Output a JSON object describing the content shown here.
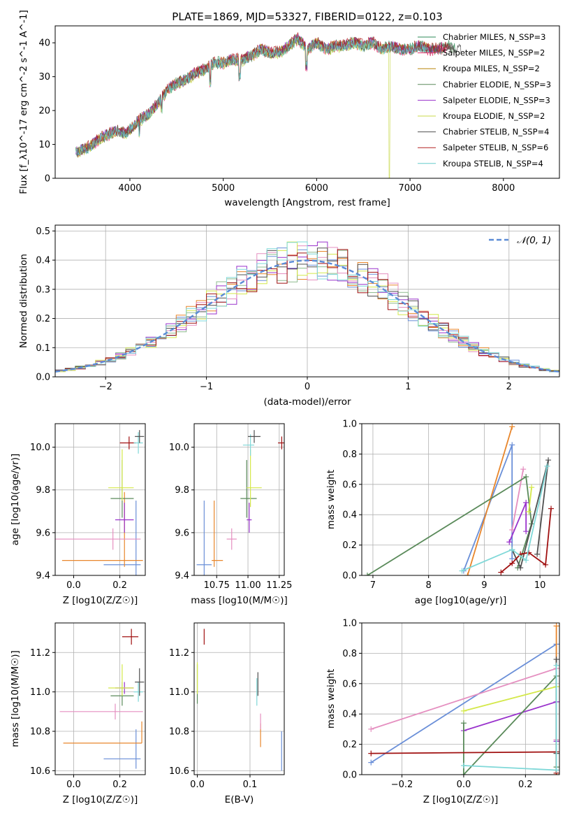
{
  "chart_data": [
    {
      "id": "spectrum",
      "type": "line",
      "title": "PLATE=1869, MJD=53327, FIBERID=0122, z=0.103",
      "xlabel": "wavelength [Angstrom, rest frame]",
      "ylabel": "Flux [f_λ10^-17 erg cm^-2 s^-1 A^-1]",
      "xlim": [
        3200,
        8600
      ],
      "ylim": [
        0,
        45
      ],
      "xticks": [
        4000,
        5000,
        6000,
        7000,
        8000
      ],
      "yticks": [
        0,
        10,
        20,
        30,
        40
      ],
      "grid": false,
      "legend_position": "right",
      "continuum": {
        "x": [
          3420,
          3550,
          3700,
          3850,
          3950,
          4100,
          4200,
          4300,
          4400,
          4500,
          4600,
          4700,
          4800,
          4900,
          5000,
          5100,
          5200,
          5300,
          5400,
          5500,
          5600,
          5700,
          5800,
          5900,
          6000,
          6100,
          6200,
          6300,
          6400,
          6500,
          6600,
          6700,
          6800,
          6900,
          7000,
          7100,
          7200,
          7300,
          7400,
          7500
        ],
        "y": [
          7.5,
          9,
          12,
          14,
          13,
          17,
          19,
          22,
          26,
          28,
          29,
          31,
          32,
          34,
          34,
          35,
          35,
          36,
          38,
          37,
          37,
          39,
          41,
          38,
          40,
          38,
          39,
          39,
          40,
          39,
          40,
          38,
          39,
          38,
          38,
          39,
          38,
          38,
          39,
          38
        ]
      },
      "series": [
        {
          "name": "Chabrier MILES, N_SSP=3",
          "color": "#2e8b57",
          "offset": 0.4
        },
        {
          "name": "Salpeter MILES, N_SSP=2",
          "color": "#e8336e",
          "offset": -0.3
        },
        {
          "name": "Kroupa MILES, N_SSP=2",
          "color": "#b8860b",
          "offset": 0.2
        },
        {
          "name": "Chabrier ELODIE, N_SSP=3",
          "color": "#5a8a5a",
          "offset": -0.2
        },
        {
          "name": "Salpeter ELODIE, N_SSP=3",
          "color": "#9932cc",
          "offset": 0.3
        },
        {
          "name": "Kroupa ELODIE, N_SSP=2",
          "color": "#c8d84a",
          "offset": -0.4
        },
        {
          "name": "Chabrier STELIB, N_SSP=4",
          "color": "#505050",
          "offset": 0.0
        },
        {
          "name": "Salpeter STELIB, N_SSP=6",
          "color": "#b22222",
          "offset": 0.5
        },
        {
          "name": "Kroupa STELIB, N_SSP=4",
          "color": "#66cccc",
          "offset": -0.1
        }
      ]
    },
    {
      "id": "residuals",
      "type": "line",
      "xlabel": "(data-model)/error",
      "ylabel": "Normed distribution",
      "xlim": [
        -2.5,
        2.5
      ],
      "ylim": [
        0,
        0.52
      ],
      "xticks": [
        -2,
        -1,
        0,
        1,
        2
      ],
      "yticks": [
        0.0,
        0.1,
        0.2,
        0.3,
        0.4,
        0.5
      ],
      "grid": true,
      "legend": {
        "label": "𝒩(0, 1)",
        "position": "top-right"
      },
      "gaussian": {
        "mu": 0,
        "sigma": 1,
        "color": "#5b8bd6"
      },
      "hist_bins": {
        "start": -2.5,
        "width": 0.1,
        "count": 50
      },
      "series": [
        {
          "color": "#6a8fd8",
          "seed": 1
        },
        {
          "color": "#e8862b",
          "seed": 2
        },
        {
          "color": "#8fbc8f",
          "seed": 3
        },
        {
          "color": "#9932cc",
          "seed": 4
        },
        {
          "color": "#e58fc0",
          "seed": 5
        },
        {
          "color": "#d4e84a",
          "seed": 6
        },
        {
          "color": "#505050",
          "seed": 7
        },
        {
          "color": "#a01010",
          "seed": 8
        },
        {
          "color": "#7fd8d8",
          "seed": 9
        }
      ]
    },
    {
      "id": "age_vs_Z",
      "type": "scatter",
      "xlabel": "Z [log10(Z/Z☉)]",
      "ylabel": "age  [log10(age/yr)]",
      "xlim": [
        -0.08,
        0.31
      ],
      "ylim": [
        9.4,
        10.11
      ],
      "xticks": [
        0.0,
        0.2
      ],
      "yticks": [
        9.4,
        9.6,
        9.8,
        10.0
      ],
      "grid": true,
      "points": [
        {
          "x": 0.27,
          "y": 9.45,
          "xerr": [
            0.14,
            0.02
          ],
          "yerr": [
            0.05,
            0.3
          ],
          "color": "#6a8fd8"
        },
        {
          "x": 0.22,
          "y": 9.47,
          "xerr": [
            0.27,
            0.08
          ],
          "yerr": [
            0.03,
            0.32
          ],
          "color": "#e8862b"
        },
        {
          "x": 0.17,
          "y": 9.57,
          "xerr": [
            0.25,
            0.12
          ],
          "yerr": [
            0.05,
            0.05
          ],
          "color": "#e58fc0"
        },
        {
          "x": 0.22,
          "y": 9.66,
          "xerr": [
            0.04,
            0.04
          ],
          "yerr": [
            0.06,
            0.08
          ],
          "color": "#9932cc"
        },
        {
          "x": 0.21,
          "y": 9.76,
          "xerr": [
            0.05,
            0.05
          ],
          "yerr": [
            0.09,
            0.18
          ],
          "color": "#5a8a5a"
        },
        {
          "x": 0.21,
          "y": 9.81,
          "xerr": [
            0.06,
            0.05
          ],
          "yerr": [
            0.06,
            0.18
          ],
          "color": "#d4e84a"
        },
        {
          "x": 0.24,
          "y": 10.02,
          "xerr": [
            0.04,
            0.03
          ],
          "yerr": [
            0.03,
            0.03
          ],
          "color": "#a01010"
        },
        {
          "x": 0.28,
          "y": 10.02,
          "xerr": [
            0.02,
            0.02
          ],
          "yerr": [
            0.05,
            0.05
          ],
          "color": "#7fd8d8"
        },
        {
          "x": 0.285,
          "y": 10.05,
          "xerr": [
            0.02,
            0.02
          ],
          "yerr": [
            0.03,
            0.03
          ],
          "color": "#505050"
        }
      ]
    },
    {
      "id": "age_vs_mass",
      "type": "scatter",
      "xlabel": "mass [log10(M/M☉)]",
      "ylabel": "",
      "xlim": [
        10.57,
        11.29
      ],
      "ylim": [
        9.4,
        10.11
      ],
      "xticks": [
        10.75,
        11.0,
        11.25
      ],
      "yticks": [
        9.4,
        9.6,
        9.8,
        10.0
      ],
      "grid": true,
      "points": [
        {
          "x": 10.65,
          "y": 9.45,
          "xerr": [
            0.06,
            0.06
          ],
          "yerr": [
            0.05,
            0.3
          ],
          "color": "#6a8fd8"
        },
        {
          "x": 10.73,
          "y": 9.47,
          "xerr": [
            0.02,
            0.07
          ],
          "yerr": [
            0.03,
            0.28
          ],
          "color": "#e8862b"
        },
        {
          "x": 10.87,
          "y": 9.57,
          "xerr": [
            0.04,
            0.04
          ],
          "yerr": [
            0.05,
            0.05
          ],
          "color": "#e58fc0"
        },
        {
          "x": 11.01,
          "y": 9.66,
          "xerr": [
            0.02,
            0.02
          ],
          "yerr": [
            0.06,
            0.08
          ],
          "color": "#9932cc"
        },
        {
          "x": 10.99,
          "y": 9.76,
          "xerr": [
            0.05,
            0.08
          ],
          "yerr": [
            0.09,
            0.18
          ],
          "color": "#5a8a5a"
        },
        {
          "x": 11.02,
          "y": 9.81,
          "xerr": [
            0.03,
            0.09
          ],
          "yerr": [
            0.09,
            0.18
          ],
          "color": "#d4e84a"
        },
        {
          "x": 11.27,
          "y": 10.02,
          "xerr": [
            0.03,
            0.02
          ],
          "yerr": [
            0.03,
            0.03
          ],
          "color": "#a01010"
        },
        {
          "x": 11.02,
          "y": 10.01,
          "xerr": [
            0.06,
            0.03
          ],
          "yerr": [
            0.05,
            0.05
          ],
          "color": "#7fd8d8"
        },
        {
          "x": 11.05,
          "y": 10.05,
          "xerr": [
            0.05,
            0.05
          ],
          "yerr": [
            0.03,
            0.03
          ],
          "color": "#505050"
        }
      ]
    },
    {
      "id": "weight_vs_age",
      "type": "line",
      "xlabel": "age  [log10(age/yr)]",
      "ylabel": "mass weight",
      "xlim": [
        6.8,
        10.35
      ],
      "ylim": [
        0,
        1.0
      ],
      "xticks": [
        7,
        8,
        9,
        10
      ],
      "yticks": [
        0.0,
        0.2,
        0.4,
        0.6,
        0.8,
        1.0
      ],
      "grid": true,
      "series": [
        {
          "color": "#6a8fd8",
          "x": [
            8.63,
            9.5,
            9.5
          ],
          "y": [
            0.03,
            0.86,
            0.11
          ]
        },
        {
          "color": "#e8862b",
          "x": [
            8.7,
            9.5
          ],
          "y": [
            0.0,
            0.98
          ]
        },
        {
          "color": "#e58fc0",
          "x": [
            9.5,
            9.7
          ],
          "y": [
            0.3,
            0.7
          ]
        },
        {
          "color": "#9932cc",
          "x": [
            9.45,
            9.75,
            9.75
          ],
          "y": [
            0.22,
            0.48,
            0.29
          ]
        },
        {
          "color": "#5a8a5a",
          "x": [
            6.9,
            9.75,
            9.85,
            9.6
          ],
          "y": [
            0.0,
            0.65,
            0.34,
            0.05
          ]
        },
        {
          "color": "#d4e84a",
          "x": [
            9.8,
            9.85
          ],
          "y": [
            0.42,
            0.58
          ]
        },
        {
          "color": "#505050",
          "x": [
            9.5,
            9.65,
            10.15,
            9.95
          ],
          "y": [
            0.17,
            0.05,
            0.76,
            0.14
          ]
        },
        {
          "color": "#a01010",
          "x": [
            9.3,
            9.5,
            9.65,
            9.8,
            10.1,
            10.2
          ],
          "y": [
            0.02,
            0.08,
            0.14,
            0.15,
            0.07,
            0.44
          ]
        },
        {
          "color": "#7fd8d8",
          "x": [
            8.6,
            9.5,
            9.75,
            10.13
          ],
          "y": [
            0.03,
            0.17,
            0.1,
            0.72
          ]
        }
      ]
    },
    {
      "id": "mass_vs_Z",
      "type": "scatter",
      "xlabel": "Z [log10(Z/Z☉)]",
      "ylabel": "mass [log10(M/M☉)]",
      "xlim": [
        -0.08,
        0.31
      ],
      "ylim": [
        10.58,
        11.35
      ],
      "xticks": [
        0.0,
        0.2
      ],
      "yticks": [
        10.6,
        10.8,
        11.0,
        11.2
      ],
      "grid": true,
      "points": [
        {
          "x": 0.27,
          "y": 10.66,
          "xerr": [
            0.14,
            0.02
          ],
          "yerr": [
            0.05,
            0.15
          ],
          "color": "#6a8fd8"
        },
        {
          "x": 0.295,
          "y": 10.74,
          "xerr": [
            0.34,
            0.0
          ],
          "yerr": [
            0.0,
            0.11
          ],
          "color": "#e8862b"
        },
        {
          "x": 0.18,
          "y": 10.9,
          "xerr": [
            0.24,
            0.12
          ],
          "yerr": [
            0.04,
            0.04
          ],
          "color": "#e58fc0"
        },
        {
          "x": 0.22,
          "y": 11.02,
          "xerr": [
            0.04,
            0.04
          ],
          "yerr": [
            0.03,
            0.03
          ],
          "color": "#9932cc"
        },
        {
          "x": 0.21,
          "y": 10.98,
          "xerr": [
            0.05,
            0.05
          ],
          "yerr": [
            0.05,
            0.07
          ],
          "color": "#5a8a5a"
        },
        {
          "x": 0.21,
          "y": 11.02,
          "xerr": [
            0.06,
            0.05
          ],
          "yerr": [
            0.04,
            0.12
          ],
          "color": "#d4e84a"
        },
        {
          "x": 0.25,
          "y": 11.28,
          "xerr": [
            0.04,
            0.03
          ],
          "yerr": [
            0.04,
            0.04
          ],
          "color": "#a01010"
        },
        {
          "x": 0.28,
          "y": 11.0,
          "xerr": [
            0.02,
            0.02
          ],
          "yerr": [
            0.05,
            0.05
          ],
          "color": "#7fd8d8"
        },
        {
          "x": 0.285,
          "y": 11.05,
          "xerr": [
            0.02,
            0.02
          ],
          "yerr": [
            0.07,
            0.07
          ],
          "color": "#505050"
        }
      ]
    },
    {
      "id": "mass_vs_EBV",
      "type": "scatter",
      "xlabel": "E(B-V)",
      "ylabel": "",
      "xlim": [
        -0.006,
        0.165
      ],
      "ylim": [
        10.58,
        11.35
      ],
      "xticks": [
        0.0,
        0.1
      ],
      "yticks": [
        10.6,
        10.8,
        11.0,
        11.2
      ],
      "grid": true,
      "points": [
        {
          "x": 0.16,
          "y": 10.7,
          "xerr": [
            0,
            0
          ],
          "yerr": [
            0.1,
            0.1
          ],
          "color": "#6a8fd8"
        },
        {
          "x": 0.12,
          "y": 10.78,
          "xerr": [
            0,
            0
          ],
          "yerr": [
            0.06,
            0.06
          ],
          "color": "#e8862b"
        },
        {
          "x": 0.12,
          "y": 10.85,
          "xerr": [
            0,
            0
          ],
          "yerr": [
            0.04,
            0.04
          ],
          "color": "#e58fc0"
        },
        {
          "x": 0.0,
          "y": 11.04,
          "xerr": [
            0,
            0
          ],
          "yerr": [
            0.1,
            0.1
          ],
          "color": "#5a8a5a"
        },
        {
          "x": 0.0,
          "y": 11.07,
          "xerr": [
            0,
            0
          ],
          "yerr": [
            0.08,
            0.08
          ],
          "color": "#d4e84a"
        },
        {
          "x": 0.013,
          "y": 11.28,
          "xerr": [
            0,
            0
          ],
          "yerr": [
            0.04,
            0.04
          ],
          "color": "#a01010"
        },
        {
          "x": 0.113,
          "y": 11.0,
          "xerr": [
            0,
            0
          ],
          "yerr": [
            0.07,
            0.07
          ],
          "color": "#7fd8d8"
        },
        {
          "x": 0.115,
          "y": 11.04,
          "xerr": [
            0,
            0
          ],
          "yerr": [
            0.06,
            0.06
          ],
          "color": "#505050"
        }
      ]
    },
    {
      "id": "weight_vs_Z",
      "type": "line",
      "xlabel": "Z [log10(Z/Z☉)]",
      "ylabel": "mass weight",
      "xlim": [
        -0.33,
        0.31
      ],
      "ylim": [
        0,
        1.0
      ],
      "xticks": [
        -0.2,
        0.0,
        0.2
      ],
      "yticks": [
        0.0,
        0.2,
        0.4,
        0.6,
        0.8,
        1.0
      ],
      "grid": true,
      "series": [
        {
          "color": "#6a8fd8",
          "x": [
            -0.3,
            0.3,
            0.3
          ],
          "y": [
            0.08,
            0.86,
            0.03
          ]
        },
        {
          "color": "#e8862b",
          "x": [
            0.3,
            0.3
          ],
          "y": [
            0.0,
            0.98
          ]
        },
        {
          "color": "#e58fc0",
          "x": [
            -0.3,
            0.3,
            0.3
          ],
          "y": [
            0.3,
            0.7,
            0.23
          ]
        },
        {
          "color": "#9932cc",
          "x": [
            0.0,
            0.3,
            0.3
          ],
          "y": [
            0.29,
            0.48,
            0.22
          ]
        },
        {
          "color": "#5a8a5a",
          "x": [
            0.0,
            0.0,
            0.3,
            0.3
          ],
          "y": [
            0.34,
            0.0,
            0.65,
            0.05
          ]
        },
        {
          "color": "#d4e84a",
          "x": [
            0.0,
            0.3
          ],
          "y": [
            0.42,
            0.58
          ]
        },
        {
          "color": "#505050",
          "x": [
            0.3,
            0.3
          ],
          "y": [
            0.14,
            0.76
          ]
        },
        {
          "color": "#a01010",
          "x": [
            -0.3,
            0.3,
            0.3
          ],
          "y": [
            0.14,
            0.15,
            0.01
          ]
        },
        {
          "color": "#7fd8d8",
          "x": [
            0.0,
            0.3,
            0.3
          ],
          "y": [
            0.06,
            0.03,
            0.72
          ]
        }
      ]
    }
  ]
}
